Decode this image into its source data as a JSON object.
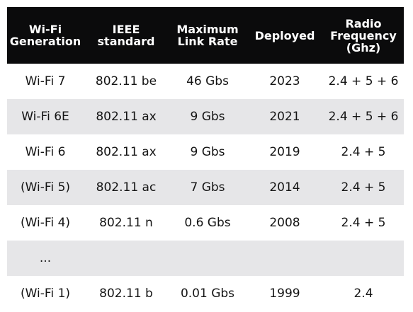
{
  "table": {
    "headers": [
      [
        "Wi-Fi",
        "Generation"
      ],
      [
        "IEEE",
        "standard"
      ],
      [
        "Maximum",
        "Link Rate"
      ],
      [
        "Deployed"
      ],
      [
        "Radio",
        "Frequency",
        "(Ghz)"
      ]
    ],
    "rows": [
      [
        "Wi-Fi 7",
        "802.11 be",
        "46 Gbs",
        "2023",
        "2.4 + 5 + 6"
      ],
      [
        "Wi-Fi 6E",
        "802.11 ax",
        "9 Gbs",
        "2021",
        "2.4 + 5 + 6"
      ],
      [
        "Wi-Fi 6",
        "802.11 ax",
        "9 Gbs",
        "2019",
        "2.4 + 5"
      ],
      [
        "(Wi-Fi 5)",
        "802.11 ac",
        "7 Gbs",
        "2014",
        "2.4 + 5"
      ],
      [
        "(Wi-Fi 4)",
        "802.11 n",
        "0.6 Gbs",
        "2008",
        "2.4 + 5"
      ],
      [
        "...",
        "",
        "",
        "",
        ""
      ],
      [
        "(Wi-Fi 1)",
        "802.11 b",
        "0.01 Gbs",
        "1999",
        "2.4"
      ]
    ]
  },
  "colors": {
    "header_background": "#0b0b0c",
    "header_text": "#ffffff",
    "row_shade": "#e6e6e8",
    "row_plain": "#ffffff",
    "body_text": "#141414"
  }
}
